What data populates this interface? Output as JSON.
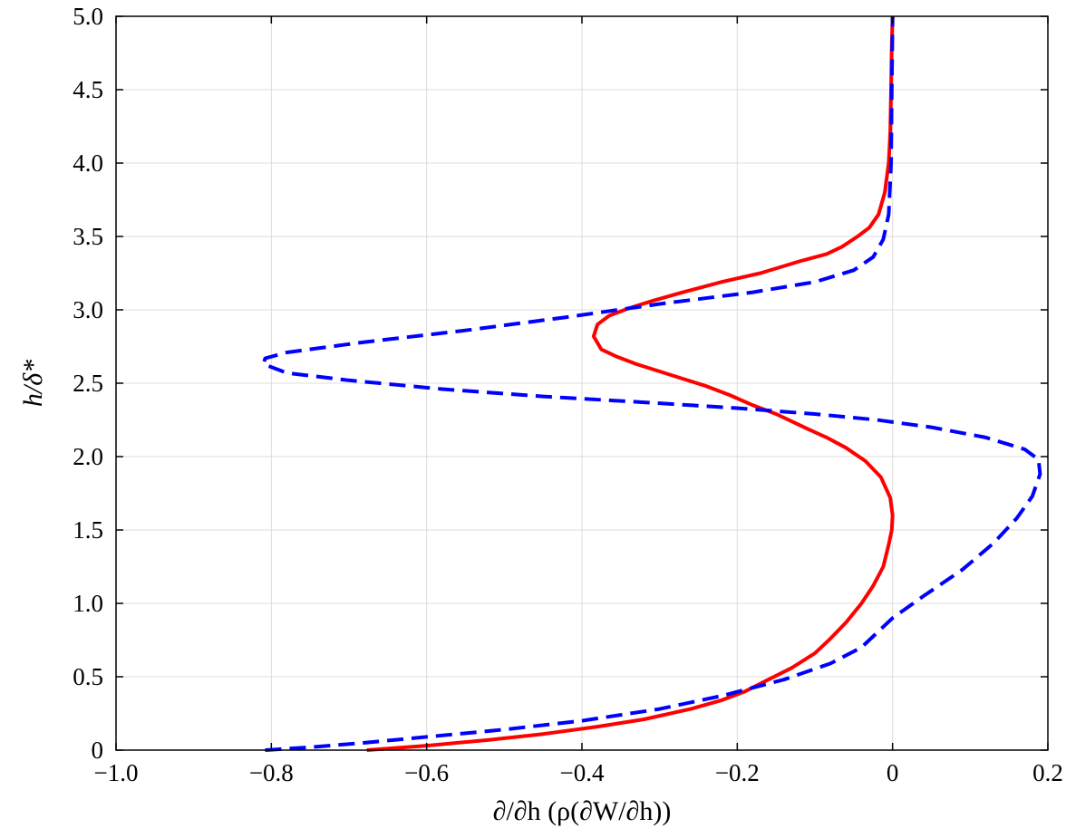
{
  "chart_data": {
    "type": "line",
    "xlabel": "∂/∂h (ρ(∂W/∂h))",
    "ylabel": "h/δ*",
    "xlim": [
      -1.0,
      0.2
    ],
    "ylim": [
      0,
      5.0
    ],
    "x_ticks": [
      -1.0,
      -0.8,
      -0.6,
      -0.4,
      -0.2,
      0,
      0.2
    ],
    "x_tick_labels": [
      "−1.0",
      "−0.8",
      "−0.6",
      "−0.4",
      "−0.2",
      "0",
      "0.2"
    ],
    "y_ticks": [
      0,
      0.5,
      1.0,
      1.5,
      2.0,
      2.5,
      3.0,
      3.5,
      4.0,
      4.5,
      5.0
    ],
    "y_tick_labels": [
      "0",
      "0.5",
      "1.0",
      "1.5",
      "2.0",
      "2.5",
      "3.0",
      "3.5",
      "4.0",
      "4.5",
      "5.0"
    ],
    "grid": true,
    "series": [
      {
        "color": "#ff0000",
        "style": "solid",
        "x": [
          -0.677,
          -0.6,
          -0.52,
          -0.45,
          -0.38,
          -0.32,
          -0.26,
          -0.22,
          -0.19,
          -0.16,
          -0.13,
          -0.1,
          -0.08,
          -0.06,
          -0.04,
          -0.025,
          -0.012,
          -0.005,
          -0.001,
          0.0,
          -0.003,
          -0.015,
          -0.035,
          -0.06,
          -0.085,
          -0.11,
          -0.13,
          -0.15,
          -0.18,
          -0.21,
          -0.24,
          -0.27,
          -0.3,
          -0.33,
          -0.355,
          -0.375,
          -0.385,
          -0.38,
          -0.365,
          -0.34,
          -0.31,
          -0.27,
          -0.22,
          -0.17,
          -0.12,
          -0.085,
          -0.065,
          -0.045,
          -0.03,
          -0.018,
          -0.01,
          -0.005,
          -0.003,
          -0.002,
          -0.001,
          0.0
        ],
        "y": [
          0,
          0.03,
          0.07,
          0.11,
          0.16,
          0.21,
          0.28,
          0.34,
          0.4,
          0.48,
          0.56,
          0.66,
          0.76,
          0.87,
          1.0,
          1.12,
          1.25,
          1.4,
          1.5,
          1.6,
          1.72,
          1.86,
          1.97,
          2.06,
          2.13,
          2.19,
          2.24,
          2.29,
          2.35,
          2.42,
          2.48,
          2.53,
          2.58,
          2.63,
          2.68,
          2.73,
          2.82,
          2.9,
          2.96,
          3.01,
          3.06,
          3.12,
          3.19,
          3.25,
          3.33,
          3.38,
          3.43,
          3.5,
          3.56,
          3.65,
          3.8,
          4.0,
          4.2,
          4.5,
          4.8,
          5.0
        ]
      },
      {
        "color": "#0000ff",
        "style": "dashed",
        "x": [
          -0.808,
          -0.75,
          -0.68,
          -0.6,
          -0.5,
          -0.4,
          -0.3,
          -0.22,
          -0.14,
          -0.08,
          -0.04,
          0.0,
          0.04,
          0.09,
          0.13,
          0.16,
          0.18,
          0.19,
          0.188,
          0.17,
          0.12,
          0.05,
          -0.02,
          -0.1,
          -0.2,
          -0.32,
          -0.45,
          -0.58,
          -0.7,
          -0.78,
          -0.81,
          -0.808,
          -0.78,
          -0.68,
          -0.55,
          -0.42,
          -0.3,
          -0.18,
          -0.1,
          -0.05,
          -0.025,
          -0.012,
          -0.005,
          -0.002,
          -0.001,
          0.0
        ],
        "y": [
          0,
          0.02,
          0.05,
          0.09,
          0.14,
          0.2,
          0.28,
          0.37,
          0.48,
          0.59,
          0.7,
          0.9,
          1.05,
          1.23,
          1.41,
          1.58,
          1.73,
          1.88,
          1.98,
          2.05,
          2.13,
          2.2,
          2.25,
          2.29,
          2.33,
          2.37,
          2.41,
          2.46,
          2.52,
          2.57,
          2.63,
          2.67,
          2.71,
          2.78,
          2.86,
          2.95,
          3.04,
          3.12,
          3.19,
          3.27,
          3.36,
          3.48,
          3.65,
          4.0,
          4.5,
          5.0
        ]
      }
    ]
  }
}
